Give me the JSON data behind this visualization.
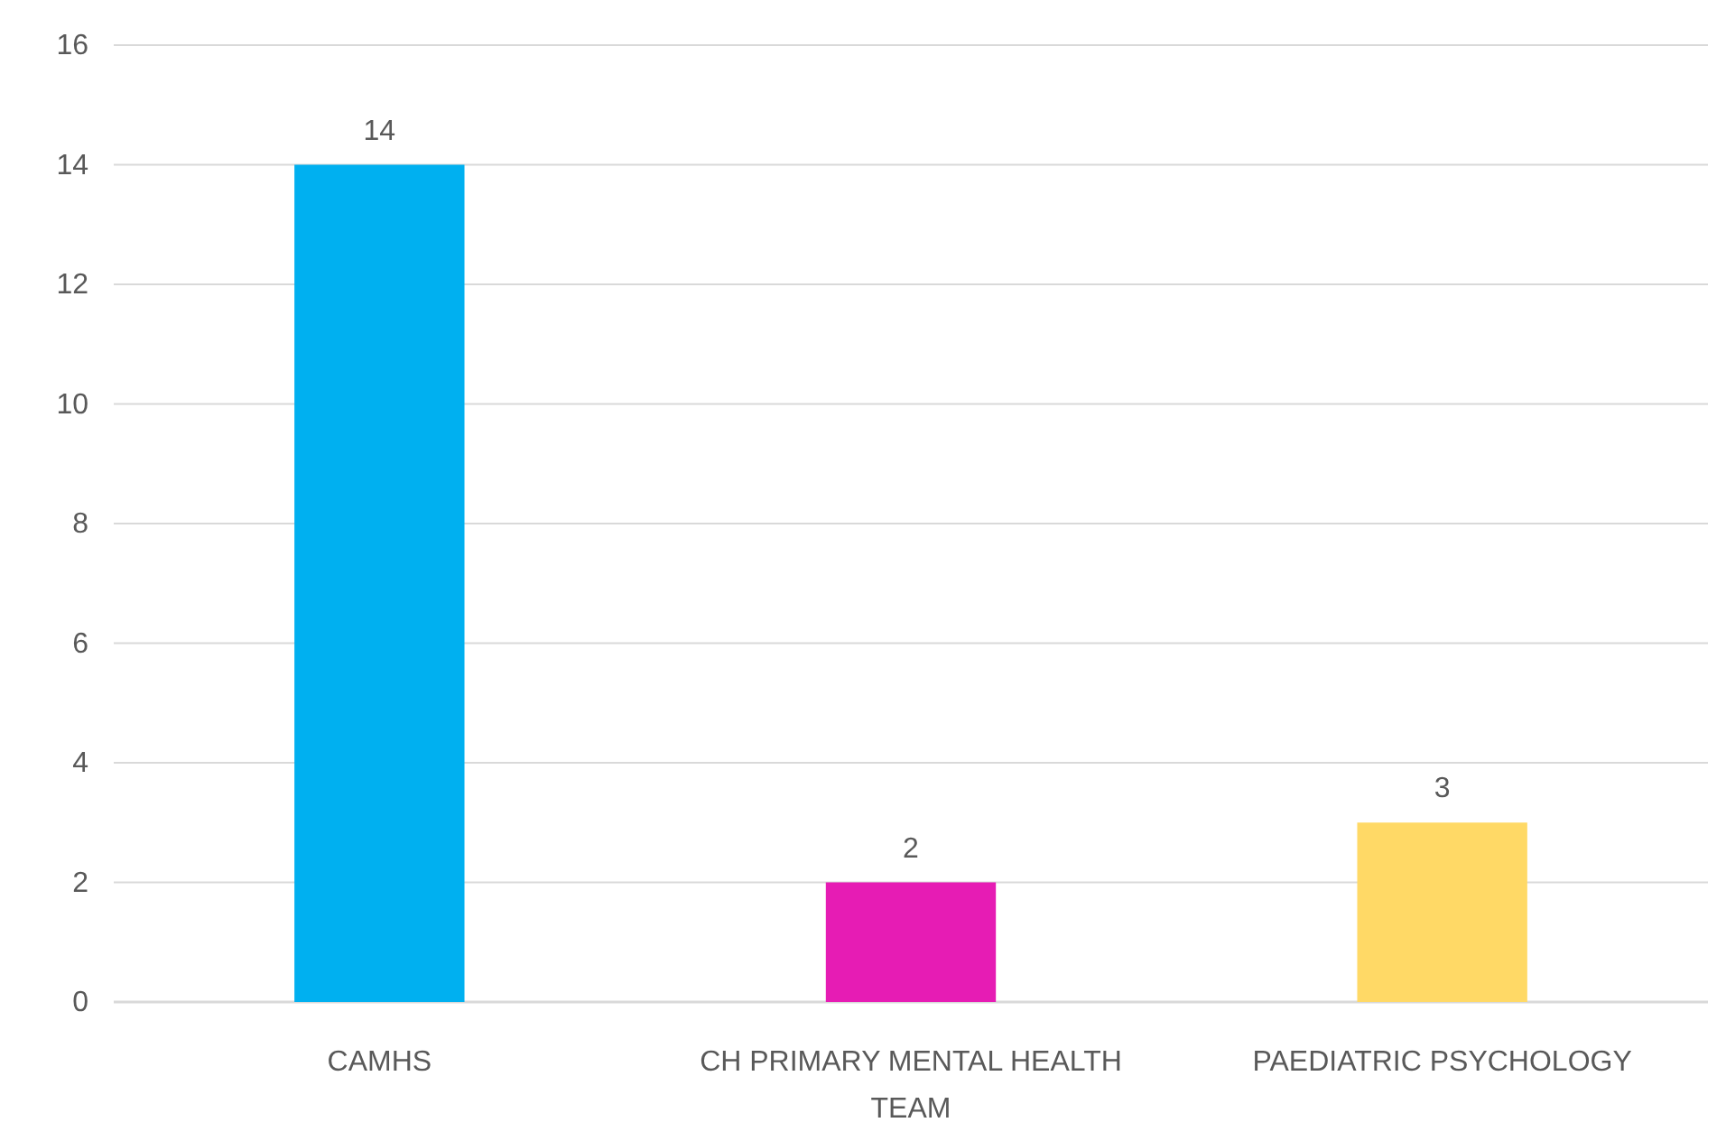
{
  "chart_data": {
    "type": "bar",
    "categories": [
      "CAMHS",
      "CH PRIMARY MENTAL HEALTH TEAM",
      "PAEDIATRIC PSYCHOLOGY"
    ],
    "values": [
      14,
      2,
      3
    ],
    "colors": [
      "#00b0f0",
      "#e61cb4",
      "#ffd966"
    ],
    "ylim": [
      0,
      16
    ],
    "yticks": [
      0,
      2,
      4,
      6,
      8,
      10,
      12,
      14,
      16
    ],
    "grid": "y",
    "data_labels": true
  }
}
